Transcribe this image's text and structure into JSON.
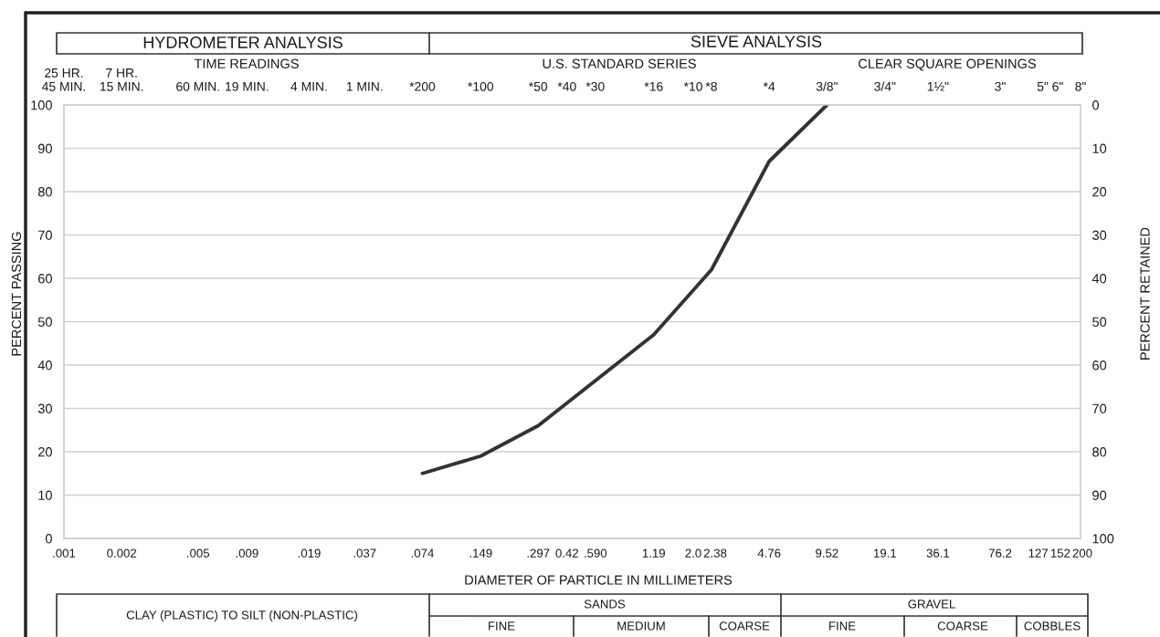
{
  "chart_data": {
    "type": "line",
    "xlabel": "DIAMETER OF PARTICLE IN MILLIMETERS",
    "ylabel": "PERCENT PASSING",
    "y2label": "PERCENT RETAINED",
    "x": [
      0.074,
      0.149,
      0.297,
      1.19,
      2.38,
      4.76,
      9.52
    ],
    "series": [
      {
        "color": "#333333",
        "values": [
          15,
          19,
          26,
          47,
          62,
          87,
          100
        ]
      }
    ],
    "log": "x",
    "xlim": [
      0.001,
      200
    ],
    "xticks": [
      {
        "value": 0.001,
        "label": ".001"
      },
      0.002,
      {
        "value": 0.005,
        "label": ".005"
      },
      {
        "value": 0.009,
        "label": ".009"
      },
      {
        "value": 0.019,
        "label": ".019"
      },
      {
        "value": 0.037,
        "label": ".037"
      },
      {
        "value": 0.074,
        "label": ".074"
      },
      {
        "value": 0.149,
        "label": ".149"
      },
      {
        "value": 0.297,
        "label": ".297"
      },
      0.42,
      {
        "value": 0.59,
        "label": ".590"
      },
      1.19,
      {
        "value": 2,
        "label": "2.0"
      },
      2.38,
      4.76,
      9.52,
      19.1,
      36.1,
      76.2,
      127,
      152,
      200
    ],
    "ylim": [
      0,
      100
    ],
    "yticks": [
      0,
      10,
      20,
      30,
      40,
      50,
      60,
      70,
      80,
      90,
      100
    ],
    "y2lim": [
      100,
      0
    ],
    "y2ticks": [
      0,
      10,
      20,
      30,
      40,
      50,
      60,
      70,
      80,
      90,
      100
    ],
    "grid": "y",
    "annotations": [
      "HYDROMETER ANALYSIS",
      "SIEVE ANALYSIS",
      "TIME READINGS",
      "U.S. STANDARD SERIES",
      "CLEAR SQUARE OPENINGS",
      "CLAY (PLASTIC) TO SILT (NON-PLASTIC)",
      "SANDS",
      "FINE",
      "MEDIUM",
      "COARSE",
      "GRAVEL",
      "FINE",
      "COARSE",
      "COBBLES",
      "25 HR.\n45 MIN.",
      "7 HR.\n15 MIN.",
      "60 MIN.",
      "19 MIN.",
      "4 MIN.",
      "1 MIN.",
      "*200",
      "*100",
      "*50",
      "*40",
      "*30",
      "*16",
      "*10",
      "*8",
      "*4",
      "3/8\"",
      "3/4\"",
      "1½\"",
      "3\"",
      "5\"",
      "6\"",
      "8\""
    ]
  }
}
